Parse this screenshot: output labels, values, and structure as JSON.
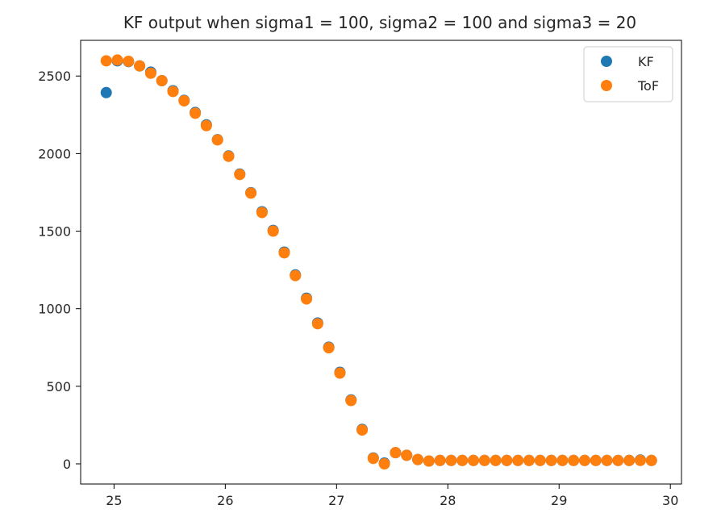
{
  "chart_data": {
    "type": "scatter",
    "title": "KF output when sigma1 = 100, sigma2 = 100 and sigma3 = 20",
    "xlabel": "",
    "ylabel": "",
    "xlim": [
      24.7,
      30.1
    ],
    "ylim": [
      -130,
      2730
    ],
    "xticks": [
      25,
      26,
      27,
      28,
      29,
      30
    ],
    "yticks": [
      0,
      500,
      1000,
      1500,
      2000,
      2500
    ],
    "grid": false,
    "legend_position": "top-right",
    "colors": {
      "KF": "#1f77b4",
      "ToF": "#ff7f0e"
    },
    "series": [
      {
        "name": "KF",
        "x": [
          24.93,
          25.03,
          25.13,
          25.23,
          25.33,
          25.43,
          25.53,
          25.63,
          25.73,
          25.83,
          25.93,
          26.03,
          26.13,
          26.23,
          26.33,
          26.43,
          26.53,
          26.63,
          26.73,
          26.83,
          26.93,
          27.03,
          27.13,
          27.23,
          27.33,
          27.43,
          27.53,
          27.63,
          27.73,
          27.83,
          27.93,
          28.03,
          28.13,
          28.23,
          28.33,
          28.43,
          28.53,
          28.63,
          28.73,
          28.83,
          28.93,
          29.03,
          29.13,
          29.23,
          29.33,
          29.43,
          29.53,
          29.63,
          29.73,
          29.83
        ],
        "y": [
          2393,
          2598,
          2593,
          2565,
          2525,
          2470,
          2405,
          2343,
          2265,
          2185,
          2090,
          1985,
          1868,
          1748,
          1625,
          1505,
          1365,
          1218,
          1068,
          908,
          752,
          590,
          412,
          222,
          38,
          5,
          72,
          55,
          28,
          18,
          22,
          22,
          22,
          22,
          22,
          22,
          22,
          22,
          22,
          22,
          22,
          22,
          22,
          22,
          22,
          22,
          22,
          22,
          25,
          22
        ]
      },
      {
        "name": "ToF",
        "x": [
          24.93,
          25.03,
          25.13,
          25.23,
          25.33,
          25.43,
          25.53,
          25.63,
          25.73,
          25.83,
          25.93,
          26.03,
          26.13,
          26.23,
          26.33,
          26.43,
          26.53,
          26.63,
          26.73,
          26.83,
          26.93,
          27.03,
          27.13,
          27.23,
          27.33,
          27.43,
          27.53,
          27.63,
          27.73,
          27.83,
          27.93,
          28.03,
          28.13,
          28.23,
          28.33,
          28.43,
          28.53,
          28.63,
          28.73,
          28.83,
          28.93,
          29.03,
          29.13,
          29.23,
          29.33,
          29.43,
          29.53,
          29.63,
          29.73,
          29.83
        ],
        "y": [
          2598,
          2603,
          2595,
          2565,
          2518,
          2470,
          2400,
          2340,
          2260,
          2180,
          2088,
          1982,
          1865,
          1745,
          1620,
          1500,
          1360,
          1213,
          1063,
          903,
          748,
          585,
          408,
          218,
          35,
          0,
          72,
          55,
          28,
          18,
          22,
          22,
          22,
          22,
          22,
          22,
          22,
          22,
          22,
          22,
          22,
          22,
          22,
          22,
          22,
          22,
          22,
          22,
          22,
          22
        ]
      }
    ]
  }
}
